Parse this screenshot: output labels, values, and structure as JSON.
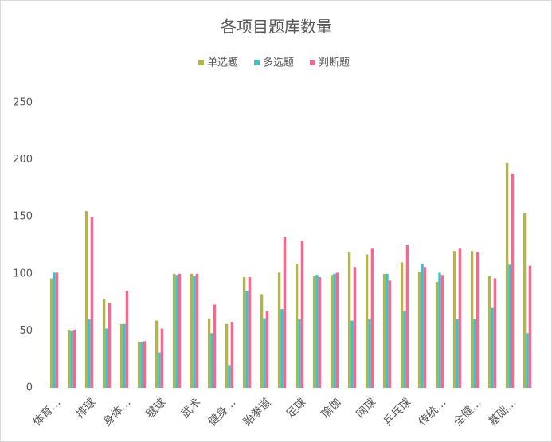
{
  "chart_data": {
    "type": "bar",
    "title": "各项目题库数量",
    "categories": [
      "体育…",
      null,
      "排球",
      null,
      "身体…",
      null,
      "毽球",
      null,
      "武术",
      null,
      "健身…",
      null,
      "跆拳道",
      null,
      "足球",
      null,
      "瑜伽",
      null,
      "网球",
      null,
      "乒乓球",
      null,
      "传统…",
      null,
      "全健…",
      null,
      "基础…",
      null
    ],
    "series": [
      {
        "name": "单选题",
        "color": "#b5b836",
        "values": [
          96,
          51,
          155,
          78,
          56,
          40,
          59,
          100,
          100,
          61,
          56,
          97,
          82,
          101,
          109,
          98,
          99,
          119,
          117,
          100,
          110,
          102,
          93,
          120,
          120,
          98,
          197,
          153
        ]
      },
      {
        "name": "多选题",
        "color": "#3fc1c9",
        "values": [
          101,
          50,
          60,
          52,
          56,
          40,
          31,
          99,
          98,
          48,
          20,
          85,
          61,
          69,
          60,
          99,
          100,
          59,
          60,
          100,
          67,
          109,
          101,
          60,
          60,
          70,
          108,
          48
        ]
      },
      {
        "name": "判断题",
        "color": "#f06b8e",
        "values": [
          101,
          51,
          150,
          74,
          85,
          41,
          52,
          100,
          100,
          73,
          58,
          97,
          67,
          132,
          129,
          97,
          101,
          106,
          122,
          94,
          125,
          106,
          99,
          122,
          119,
          96,
          188,
          107
        ]
      }
    ],
    "ylim": [
      0,
      250
    ],
    "yticks": [
      0,
      50,
      100,
      150,
      200,
      250
    ],
    "legend": "top"
  }
}
